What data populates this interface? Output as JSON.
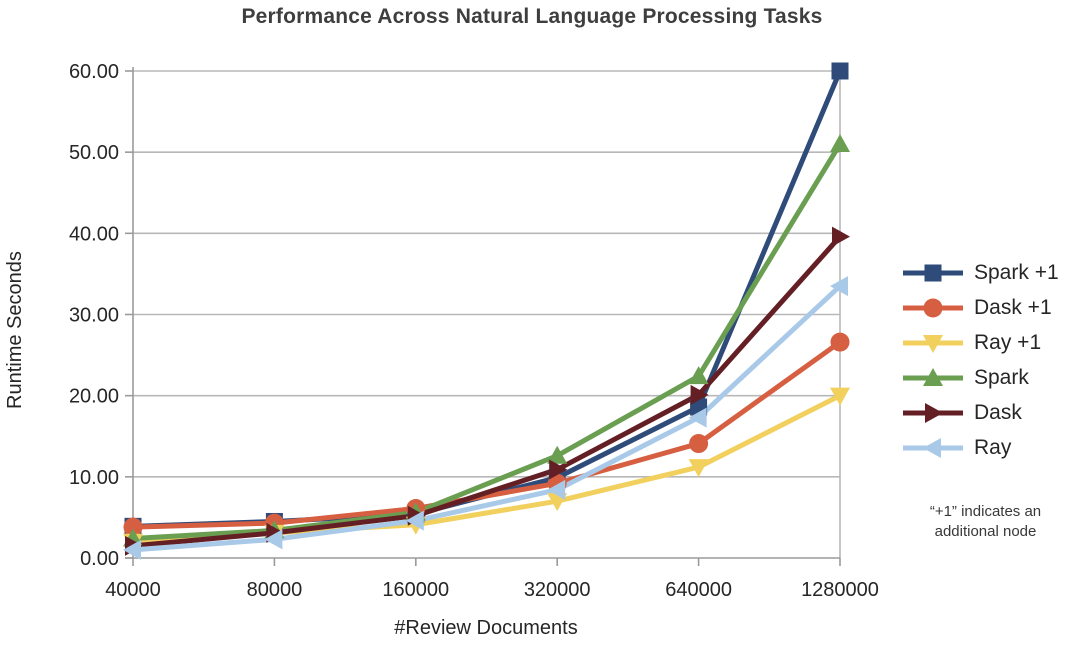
{
  "chart_data": {
    "type": "line",
    "title": "Performance Across Natural Language Processing Tasks",
    "xlabel": "#Review Documents",
    "ylabel": "Runtime Seconds",
    "x": [
      40000,
      80000,
      160000,
      320000,
      640000,
      1280000
    ],
    "x_tick_labels": [
      "40000",
      "80000",
      "160000",
      "320000",
      "640000",
      "1280000"
    ],
    "ylim": [
      0,
      60
    ],
    "y_ticks": [
      0,
      10,
      20,
      30,
      40,
      50,
      60
    ],
    "y_tick_labels": [
      "0.00",
      "10.00",
      "20.00",
      "30.00",
      "40.00",
      "50.00",
      "60.00"
    ],
    "grid": "horizontal gridlines on",
    "legend_position": "right",
    "series": [
      {
        "name": "Spark +1",
        "color": "#2e4b79",
        "marker": "square",
        "values": [
          3.9,
          4.5,
          5.4,
          9.9,
          18.6,
          60.0
        ]
      },
      {
        "name": "Dask +1",
        "color": "#d65f41",
        "marker": "circle",
        "values": [
          3.8,
          4.3,
          6.1,
          9.2,
          14.1,
          26.6
        ]
      },
      {
        "name": "Ray +1",
        "color": "#f2d05e",
        "marker": "triangle-down",
        "values": [
          2.0,
          3.1,
          4.1,
          7.0,
          11.2,
          20.0
        ]
      },
      {
        "name": "Spark",
        "color": "#6a9e51",
        "marker": "triangle-up",
        "values": [
          2.4,
          3.4,
          5.6,
          12.6,
          22.4,
          51.0
        ]
      },
      {
        "name": "Dask",
        "color": "#641f24",
        "marker": "triangle-right",
        "values": [
          1.5,
          3.1,
          5.2,
          10.9,
          20.1,
          39.6
        ]
      },
      {
        "name": "Ray",
        "color": "#a9c9e8",
        "marker": "triangle-left",
        "values": [
          1.0,
          2.3,
          4.6,
          8.4,
          17.3,
          33.5
        ]
      }
    ],
    "note": "“+1” indicates an additional node"
  },
  "note": {
    "line1": "“+1” indicates an",
    "line2": "additional node"
  },
  "colors": {
    "grid": "#b8b8b8",
    "axis": "#9b9b9b",
    "tick_text": "#262626",
    "title_text": "#3e3e3e"
  }
}
